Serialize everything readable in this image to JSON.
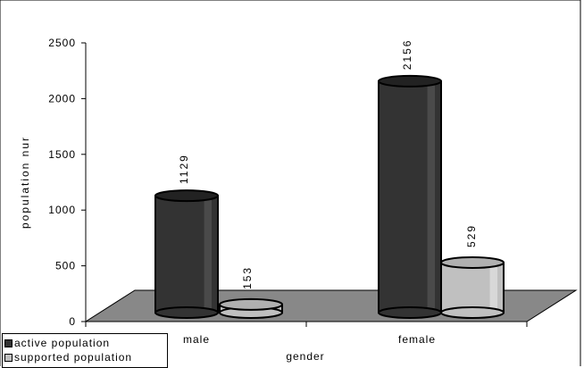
{
  "chart_data": {
    "type": "bar",
    "categories": [
      "male",
      "female"
    ],
    "series": [
      {
        "name": "active population",
        "values": [
          1129,
          2156
        ],
        "labels": [
          "1129",
          "2156"
        ],
        "color": "#333333"
      },
      {
        "name": "supported population",
        "values": [
          153,
          529
        ],
        "labels": [
          "153",
          "529"
        ],
        "color": "#c0c0c0"
      }
    ],
    "xlabel": "gender",
    "ylabel": "population nur",
    "ylim": [
      0,
      2500
    ],
    "yticks": [
      "0",
      "500",
      "1000",
      "1500",
      "2000",
      "2500"
    ],
    "legend_position": "bottom-left",
    "grid": false,
    "style": "3d-cylinder"
  }
}
